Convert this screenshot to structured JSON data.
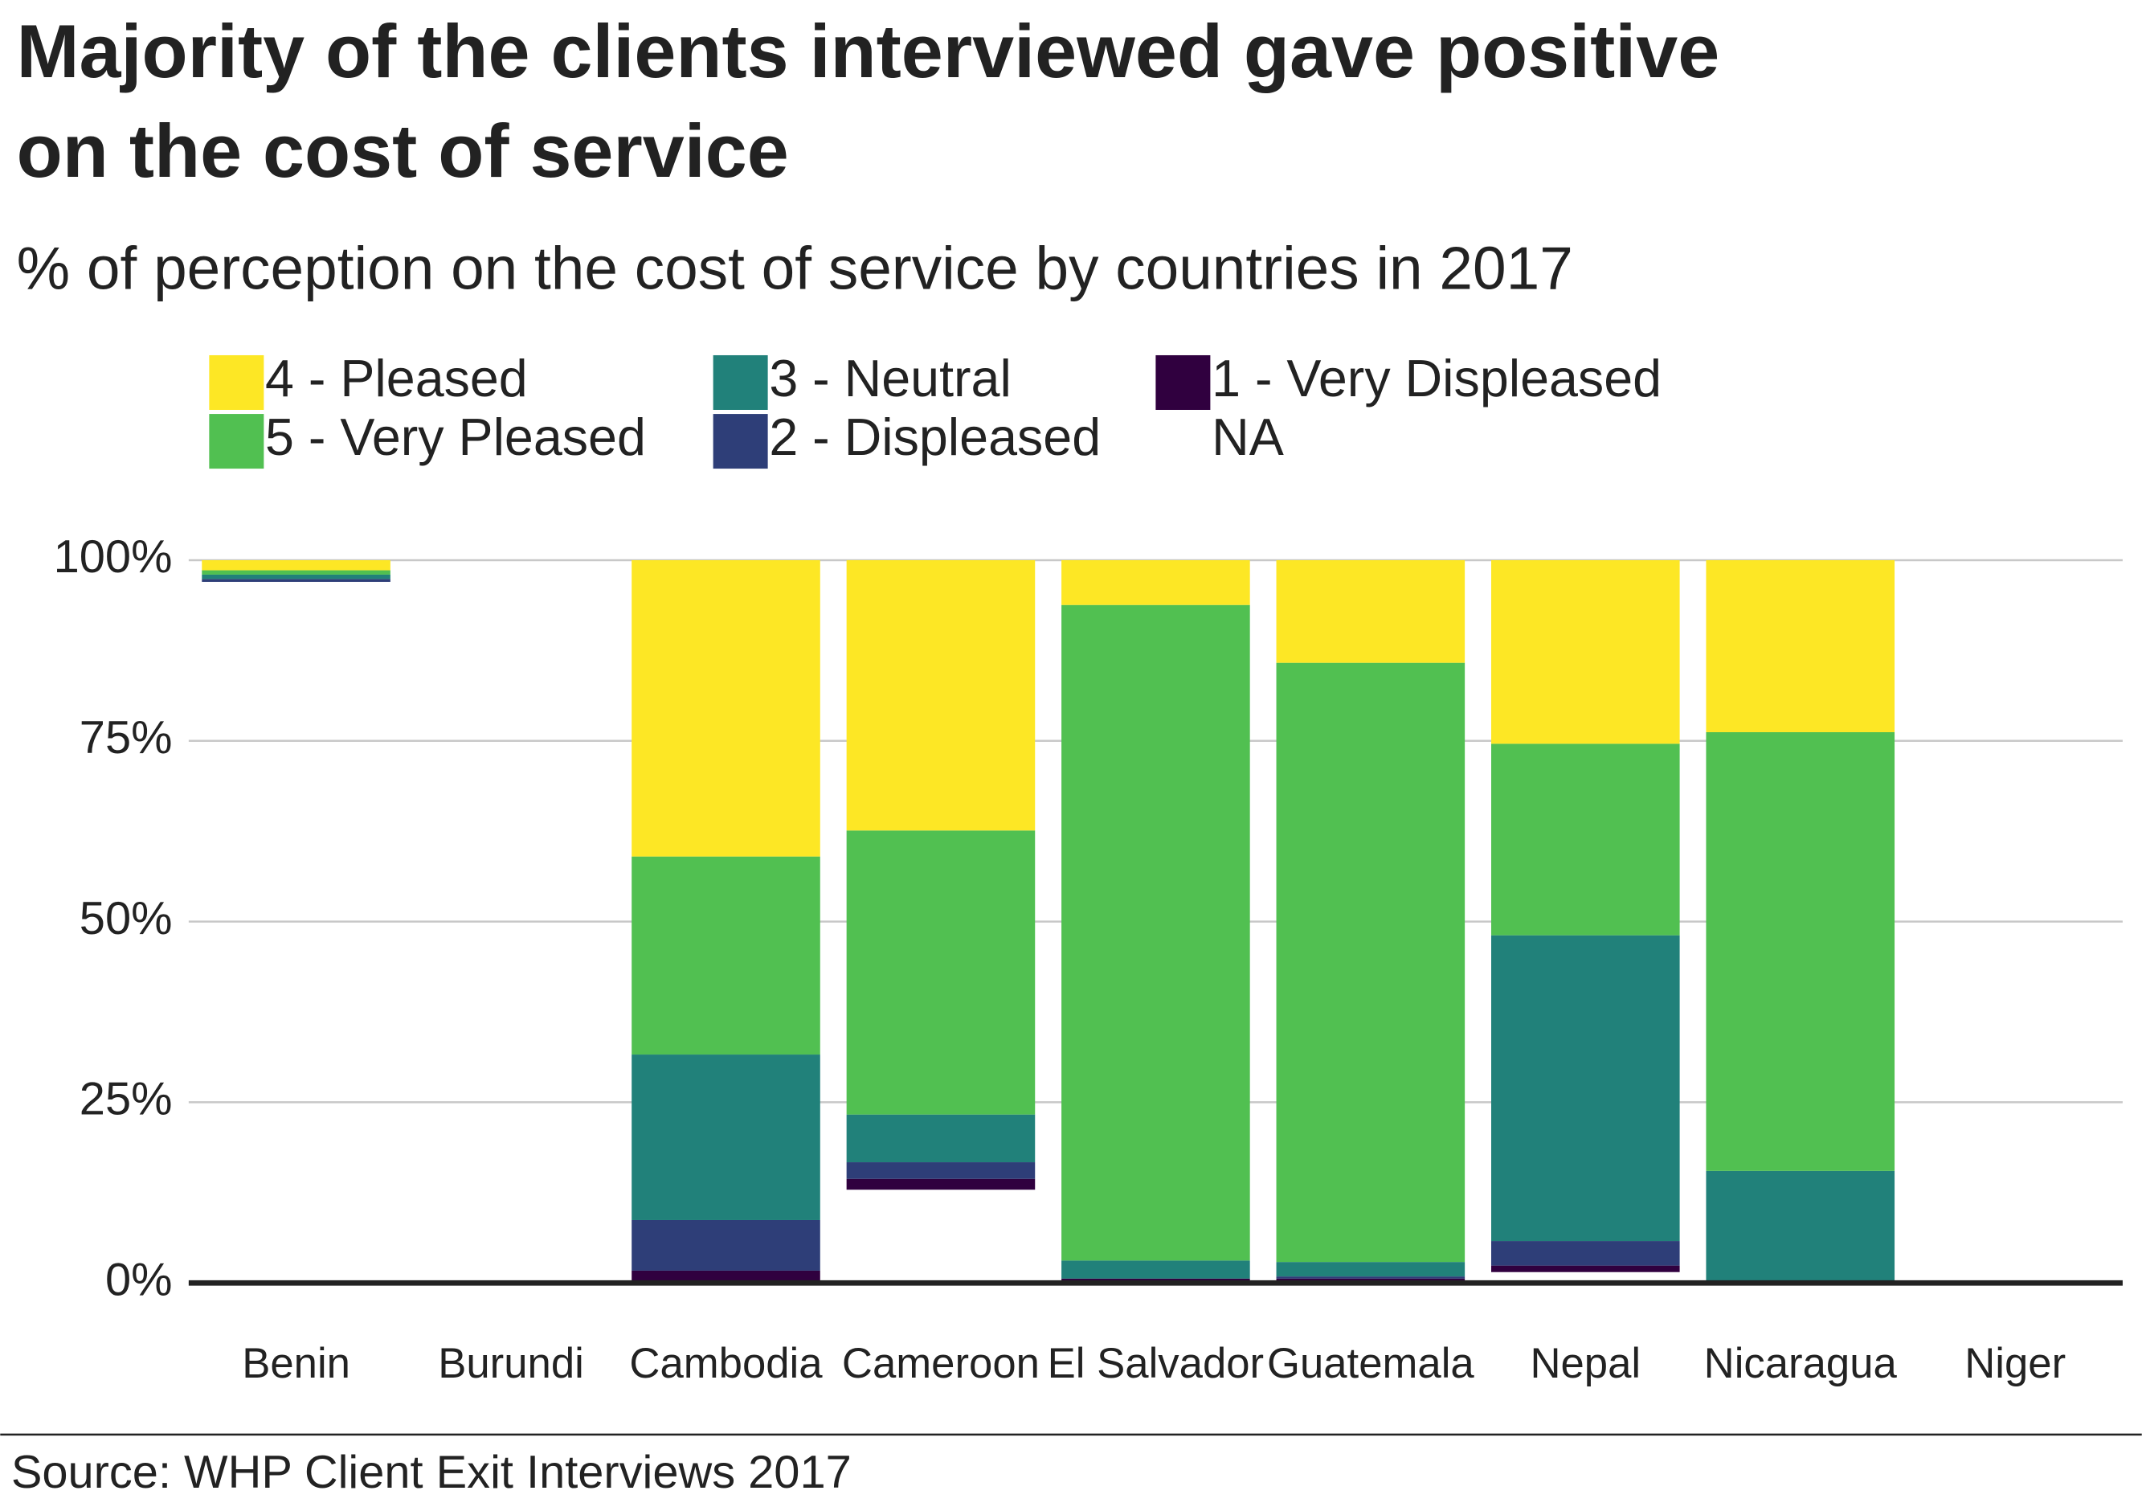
{
  "chart_data": {
    "type": "stacked_bar",
    "title": [
      "Majority of the clients interviewed gave positive",
      "on the cost of service"
    ],
    "subtitle": "% of perception on the cost of service by countries in 2017",
    "source": "Source: WHP Client Exit Interviews 2017",
    "categories": [
      "Benin",
      "Burundi",
      "Cambodia",
      "Cameroon",
      "El Salvador",
      "Guatemala",
      "Nepal",
      "Nicaragua",
      "Niger"
    ],
    "series": [
      {
        "name": "4 - Pleased",
        "color": "#fde725",
        "values": [
          1.4,
          0,
          41.0,
          37.4,
          6.2,
          14.2,
          25.4,
          23.8,
          0
        ]
      },
      {
        "name": "5 - Very Pleased",
        "color": "#51c051",
        "values": [
          0.6,
          0,
          27.4,
          39.3,
          90.7,
          82.9,
          26.5,
          60.7,
          0
        ]
      },
      {
        "name": "3 - Neutral",
        "color": "#21817a",
        "values": [
          0.6,
          0,
          22.9,
          6.6,
          2.5,
          2.0,
          42.3,
          15.5,
          0
        ]
      },
      {
        "name": "2 - Displeased",
        "color": "#2e3e78",
        "values": [
          0.4,
          0,
          7.0,
          2.3,
          0,
          0.3,
          3.4,
          0,
          0
        ]
      },
      {
        "name": "1 - Very Displeased",
        "color": "#30003f",
        "values": [
          0,
          0,
          1.7,
          1.5,
          0.6,
          0.6,
          0.9,
          0,
          0
        ]
      },
      {
        "name": "NA",
        "color": "transparent",
        "values": [
          97.0,
          0,
          0,
          12.9,
          0,
          0,
          1.5,
          0,
          0
        ]
      }
    ],
    "ylim": [
      0,
      100
    ],
    "yticks": [
      {
        "value": 0,
        "label": "0%"
      },
      {
        "value": 25,
        "label": "25%"
      },
      {
        "value": 50,
        "label": "50%"
      },
      {
        "value": 75,
        "label": "75%"
      },
      {
        "value": 100,
        "label": "100%"
      }
    ],
    "grid": true,
    "legend": "top"
  }
}
